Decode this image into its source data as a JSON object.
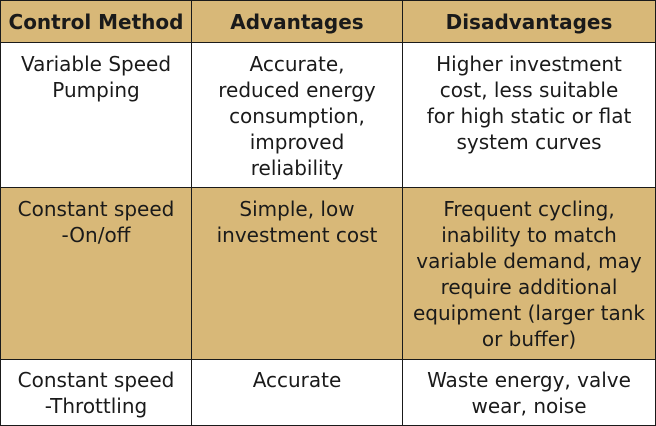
{
  "colors": {
    "header_bg": "#d8b878",
    "shaded_row_bg": "#d8b878",
    "border": "#1a1a1a"
  },
  "table": {
    "headers": [
      "Control Method",
      "Advantages",
      "Disadvantages"
    ],
    "rows": [
      {
        "method": "Variable Speed\nPumping",
        "advantages": "Accurate,\nreduced energy\nconsumption,\nimproved\nreliability",
        "disadvantages": "Higher investment\ncost, less suitable\nfor high static or flat\nsystem curves"
      },
      {
        "method": "Constant speed\n-On/off",
        "advantages": "Simple, low\ninvestment cost",
        "disadvantages": "Frequent cycling,\ninability to match\nvariable demand, may\nrequire additional\nequipment (larger tank\nor buffer)"
      },
      {
        "method": "Constant speed\n-Throttling",
        "advantages": "Accurate",
        "disadvantages": "Waste energy, valve\nwear, noise"
      }
    ]
  }
}
